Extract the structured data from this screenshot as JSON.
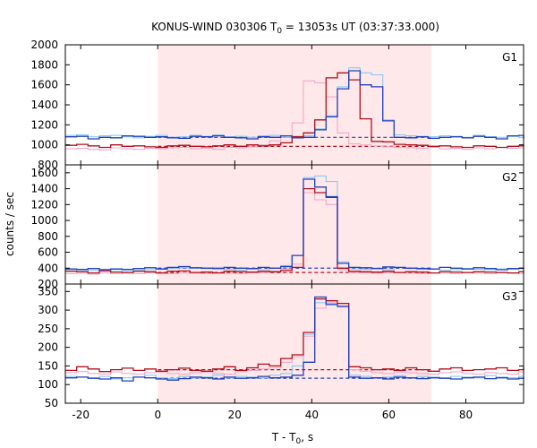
{
  "figure": {
    "title_main": "KONUS-WIND 030306 T",
    "title_sub": "0",
    "title_rest": " = 13053s UT (03:37:33.000)",
    "ylabel": "counts / sec",
    "xlabel_main": "T - T",
    "xlabel_sub": "0",
    "xlabel_rest": ", s"
  },
  "chart_data": {
    "type": "line",
    "title": "KONUS-WIND 030306 T0 = 13053s UT (03:37:33.000)",
    "xlabel": "T - T0, s",
    "ylabel": "counts / sec",
    "xlim": [
      -24,
      95
    ],
    "xticks": [
      -20,
      0,
      20,
      40,
      60,
      80
    ],
    "shaded_interval": [
      0,
      71
    ],
    "colors": {
      "shade": "#ffe8ea",
      "dark_blue": "#1f3fbf",
      "light_blue": "#88c8f0",
      "dark_red": "#b0101c",
      "pink": "#f0a8c8",
      "frame": "#000000"
    },
    "panels": [
      {
        "label": "G1",
        "ylim": [
          800,
          2000
        ],
        "yticks": [
          800,
          1000,
          1200,
          1400,
          1600,
          1800,
          2000
        ],
        "background_levels": [
          {
            "color": "dark_blue",
            "value": 1075
          },
          {
            "color": "dark_red",
            "value": 985
          }
        ],
        "series": [
          {
            "color": "dark_blue",
            "x_start": -24,
            "step": 2.944,
            "values": [
              1080,
              1085,
              1060,
              1075,
              1070,
              1090,
              1085,
              1075,
              1080,
              1070,
              1065,
              1085,
              1080,
              1090,
              1075,
              1070,
              1060,
              1080,
              1075,
              1090,
              1070,
              1075,
              1150,
              1280,
              1560,
              1740,
              1600,
              1580,
              1240,
              1075,
              1070,
              1080,
              1065,
              1075,
              1080,
              1070,
              1085,
              1075,
              1060,
              1090,
              1095,
              1080,
              1070,
              1080,
              1070,
              1060,
              1075,
              1075,
              1070,
              1070
            ]
          },
          {
            "color": "light_blue",
            "x_start": -24,
            "step": 2.944,
            "values": [
              1095,
              1100,
              1080,
              1090,
              1095,
              1080,
              1070,
              1085,
              1095,
              1075,
              1080,
              1095,
              1085,
              1100,
              1080,
              1085,
              1075,
              1090,
              1095,
              1075,
              1085,
              1090,
              1160,
              1290,
              1580,
              1770,
              1720,
              1700,
              1250,
              1100,
              1090,
              1085,
              1080,
              1090,
              1085,
              1075,
              1095,
              1080,
              1075,
              1085,
              1075,
              1090,
              1070,
              1090,
              1080,
              1075,
              1090,
              1065,
              1070,
              1060
            ]
          },
          {
            "color": "dark_red",
            "x_start": -24,
            "step": 2.944,
            "values": [
              995,
              1005,
              990,
              975,
              1000,
              985,
              990,
              980,
              975,
              990,
              995,
              985,
              980,
              990,
              1000,
              985,
              1000,
              990,
              1000,
              1020,
              1080,
              1120,
              1250,
              1670,
              1720,
              1650,
              1260,
              1035,
              1030,
              1005,
              1000,
              995,
              985,
              990,
              980,
              975,
              990,
              985,
              975,
              985,
              990,
              1000,
              995,
              985,
              1000,
              990,
              1005,
              990,
              995,
              1000
            ]
          },
          {
            "color": "pink",
            "x_start": -24,
            "step": 2.944,
            "values": [
              960,
              965,
              955,
              950,
              970,
              960,
              955,
              965,
              960,
              970,
              975,
              960,
              965,
              955,
              975,
              970,
              980,
              1000,
              1040,
              1090,
              1220,
              1640,
              1620,
              1480,
              1120,
              1010,
              1000,
              990,
              980,
              975,
              970,
              965,
              975,
              960,
              965,
              955,
              970,
              960,
              975,
              965,
              970,
              975,
              960,
              965,
              970,
              960,
              965,
              970,
              960,
              965
            ]
          }
        ]
      },
      {
        "label": "G2",
        "ylim": [
          200,
          1700
        ],
        "yticks": [
          200,
          400,
          600,
          800,
          1000,
          1200,
          1400,
          1600
        ],
        "background_levels": [
          {
            "color": "dark_blue",
            "value": 400
          },
          {
            "color": "dark_red",
            "value": 345
          }
        ],
        "series": [
          {
            "color": "dark_blue",
            "x_start": -24,
            "step": 2.944,
            "values": [
              390,
              385,
              395,
              380,
              390,
              385,
              395,
              405,
              390,
              410,
              420,
              405,
              400,
              395,
              410,
              400,
              395,
              410,
              400,
              420,
              560,
              1520,
              1420,
              1300,
              460,
              410,
              405,
              395,
              415,
              410,
              400,
              395,
              390,
              410,
              400,
              390,
              405,
              395,
              380,
              395,
              400,
              410,
              395,
              390,
              405,
              395,
              410,
              395,
              400,
              395
            ]
          },
          {
            "color": "light_blue",
            "x_start": -24,
            "step": 2.944,
            "values": [
              380,
              375,
              370,
              385,
              380,
              370,
              375,
              380,
              390,
              395,
              405,
              400,
              395,
              410,
              385,
              375,
              390,
              380,
              400,
              430,
              560,
              1540,
              1560,
              1490,
              480,
              390,
              385,
              400,
              380,
              410,
              395,
              385,
              390,
              375,
              380,
              395,
              385,
              380,
              390,
              385,
              395,
              380,
              390,
              385,
              380,
              390,
              385,
              380,
              395,
              390
            ]
          },
          {
            "color": "dark_red",
            "x_start": -24,
            "step": 2.944,
            "values": [
              360,
              355,
              340,
              365,
              350,
              345,
              360,
              355,
              340,
              360,
              365,
              345,
              350,
              340,
              360,
              355,
              350,
              360,
              355,
              370,
              410,
              1400,
              1350,
              1290,
              400,
              360,
              355,
              350,
              360,
              345,
              355,
              350,
              340,
              355,
              350,
              345,
              355,
              350,
              345,
              340,
              355,
              350,
              345,
              350,
              355,
              345,
              350,
              340,
              355,
              345
            ]
          },
          {
            "color": "pink",
            "x_start": -24,
            "step": 2.944,
            "values": [
              330,
              335,
              325,
              340,
              330,
              335,
              330,
              340,
              335,
              330,
              340,
              335,
              330,
              340,
              335,
              330,
              340,
              345,
              360,
              390,
              450,
              1350,
              1260,
              1200,
              380,
              345,
              340,
              335,
              345,
              340,
              335,
              330,
              340,
              335,
              330,
              340,
              335,
              330,
              340,
              335,
              330,
              345,
              335,
              330,
              340,
              335,
              345,
              335,
              330,
              340
            ]
          }
        ]
      },
      {
        "label": "G3",
        "ylim": [
          50,
          370
        ],
        "yticks": [
          50,
          100,
          150,
          200,
          250,
          300,
          350
        ],
        "background_levels": [
          {
            "color": "dark_red",
            "value": 140
          },
          {
            "color": "dark_blue",
            "value": 117
          }
        ],
        "series": [
          {
            "color": "dark_blue",
            "x_start": -24,
            "step": 2.944,
            "values": [
              118,
              120,
              117,
              115,
              118,
              110,
              120,
              118,
              115,
              112,
              116,
              120,
              118,
              115,
              120,
              117,
              118,
              122,
              118,
              120,
              125,
              160,
              335,
              315,
              310,
              120,
              117,
              118,
              115,
              120,
              118,
              116,
              118,
              117,
              115,
              118,
              120,
              116,
              118,
              115,
              117,
              118,
              116,
              115,
              118,
              117,
              115,
              118,
              116,
              117
            ]
          },
          {
            "color": "light_blue",
            "x_start": -24,
            "step": 2.944,
            "values": [
              122,
              120,
              118,
              122,
              115,
              118,
              120,
              125,
              118,
              116,
              122,
              118,
              120,
              125,
              118,
              122,
              120,
              118,
              125,
              130,
              150,
              235,
              320,
              318,
              310,
              125,
              122,
              118,
              120,
              124,
              118,
              122,
              120,
              118,
              122,
              120,
              118,
              124,
              120,
              118,
              122,
              120,
              118,
              122,
              120,
              118,
              124,
              120,
              122,
              120
            ]
          },
          {
            "color": "dark_red",
            "x_start": -24,
            "step": 2.944,
            "values": [
              138,
              148,
              142,
              135,
              140,
              144,
              138,
              142,
              136,
              140,
              144,
              138,
              136,
              142,
              148,
              138,
              145,
              155,
              150,
              170,
              180,
              240,
              330,
              325,
              318,
              148,
              145,
              140,
              142,
              138,
              145,
              140,
              136,
              142,
              145,
              138,
              140,
              142,
              145,
              138,
              140,
              148,
              142,
              140,
              138,
              145,
              140,
              142,
              140,
              145
            ]
          },
          {
            "color": "pink",
            "x_start": -24,
            "step": 2.944,
            "values": [
              132,
              135,
              130,
              128,
              134,
              130,
              128,
              132,
              134,
              130,
              128,
              132,
              134,
              130,
              128,
              135,
              138,
              142,
              145,
              160,
              175,
              230,
              305,
              320,
              308,
              140,
              136,
              132,
              130,
              134,
              132,
              130,
              128,
              132,
              134,
              130,
              128,
              132,
              130,
              128,
              134,
              130,
              128,
              132,
              130,
              134,
              130,
              128,
              132,
              130
            ]
          }
        ]
      }
    ]
  }
}
